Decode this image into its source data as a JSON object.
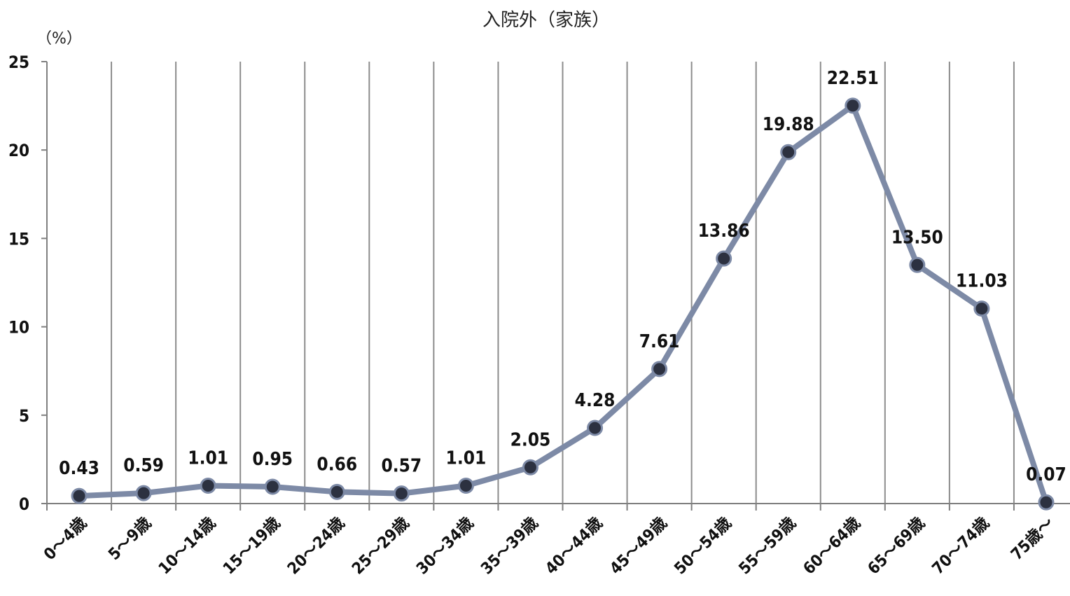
{
  "chart_data": {
    "type": "line",
    "title": "入院外（家族）",
    "ylabel": "（%）",
    "ylim": [
      0,
      25
    ],
    "yticks": [
      "0",
      "5",
      "10",
      "15",
      "20",
      "25"
    ],
    "categories": [
      "0～4歳",
      "5～9歳",
      "10～14歳",
      "15～19歳",
      "20～24歳",
      "25～29歳",
      "30～34歳",
      "35～39歳",
      "40～44歳",
      "45～49歳",
      "50～54歳",
      "55～59歳",
      "60～64歳",
      "65～69歳",
      "70～74歳",
      "75歳～"
    ],
    "values": [
      0.43,
      0.59,
      1.01,
      0.95,
      0.66,
      0.57,
      1.01,
      2.05,
      4.28,
      7.61,
      13.86,
      19.88,
      22.51,
      13.5,
      11.03,
      0.07
    ],
    "value_labels": [
      "0.43",
      "0.59",
      "1.01",
      "0.95",
      "0.66",
      "0.57",
      "1.01",
      "2.05",
      "4.28",
      "7.61",
      "13.86",
      "19.88",
      "22.51",
      "13.50",
      "11.03",
      "0.07"
    ],
    "grid": "vertical",
    "legend": "none",
    "colors": {
      "line": "#7d8aa6",
      "marker_fill": "#2c3140",
      "marker_stroke": "#7d8aa6",
      "grid": "#8c8c8c",
      "axis": "#7f7f7f"
    }
  }
}
